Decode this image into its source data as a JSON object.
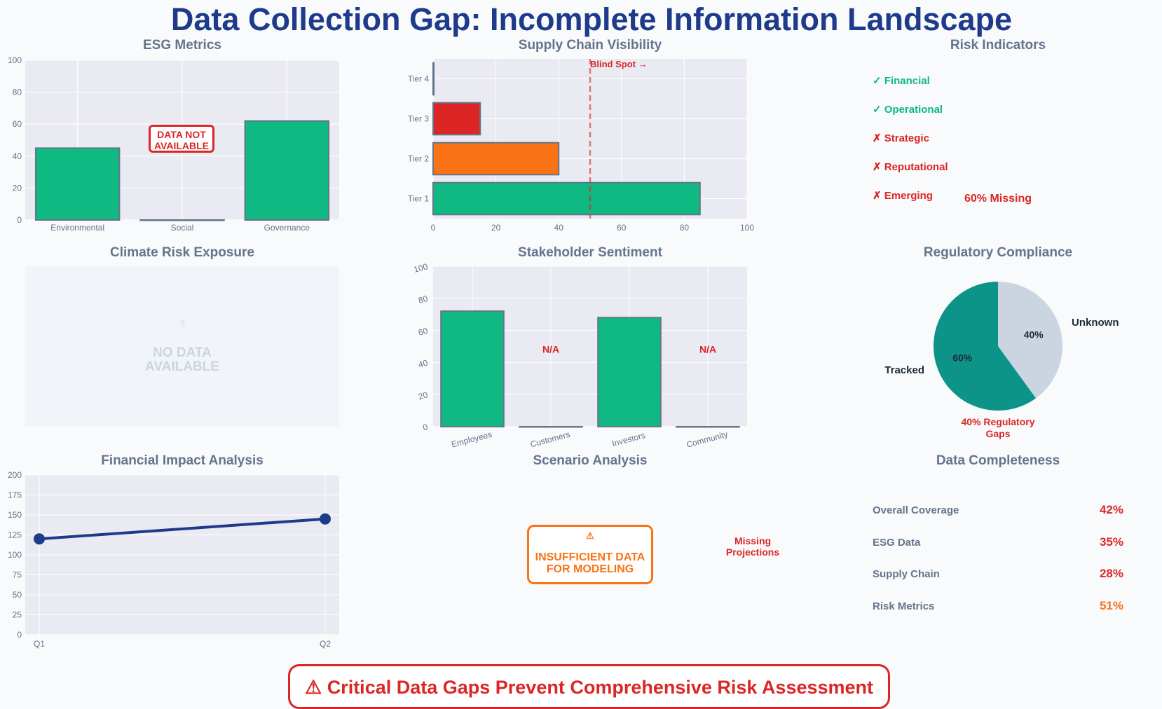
{
  "title": "Data Collection Gap: Incomplete Information Landscape",
  "colors": {
    "green": "#10b981",
    "red": "#dc2626",
    "orange": "#f97316",
    "navy": "#1e3a8a",
    "teal": "#0d9488",
    "gray_slice": "#cbd5e1",
    "grid_bg": "#eaebf2"
  },
  "panels": {
    "esg": {
      "title": "ESG Metrics",
      "badge": "DATA NOT\nAVAILABLE"
    },
    "supply": {
      "title": "Supply Chain Visibility",
      "blind_spot": "Blind Spot →"
    },
    "risk": {
      "title": "Risk Indicators",
      "missing": "60% Missing"
    },
    "climate": {
      "title": "Climate Risk Exposure",
      "icon": "question-icon",
      "message": "NO DATA\nAVAILABLE"
    },
    "stakeholder": {
      "title": "Stakeholder Sentiment",
      "na_label": "N/A"
    },
    "regulatory": {
      "title": "Regulatory Compliance",
      "gaps": "40% Regulatory\nGaps"
    },
    "financial": {
      "title": "Financial Impact Analysis"
    },
    "scenario": {
      "title": "Scenario Analysis",
      "icon": "warning-icon",
      "message": "INSUFFICIENT DATA\nFOR MODELING",
      "side_note": "Missing\nProjections"
    },
    "completeness": {
      "title": "Data Completeness"
    }
  },
  "risk_indicators": [
    {
      "label": "Financial",
      "status": "available",
      "color": "#10b981"
    },
    {
      "label": "Operational",
      "status": "available",
      "color": "#10b981"
    },
    {
      "label": "Strategic",
      "status": "missing",
      "color": "#dc2626"
    },
    {
      "label": "Reputational",
      "status": "missing",
      "color": "#dc2626"
    },
    {
      "label": "Emerging",
      "status": "missing",
      "color": "#dc2626"
    }
  ],
  "completeness": [
    {
      "label": "Overall Coverage",
      "value": "42%",
      "color": "#dc2626"
    },
    {
      "label": "ESG Data",
      "value": "35%",
      "color": "#dc2626"
    },
    {
      "label": "Supply Chain",
      "value": "28%",
      "color": "#dc2626"
    },
    {
      "label": "Risk Metrics",
      "value": "51%",
      "color": "#f97316"
    }
  ],
  "footer": "Critical Data Gaps Prevent Comprehensive Risk Assessment",
  "chart_data": [
    {
      "id": "esg",
      "type": "bar",
      "title": "ESG Metrics",
      "categories": [
        "Environmental",
        "Social",
        "Governance"
      ],
      "values": [
        45,
        0,
        62
      ],
      "ylim": [
        0,
        100
      ],
      "yticks": [
        0,
        20,
        40,
        60,
        80,
        100
      ]
    },
    {
      "id": "supply",
      "type": "bar",
      "orientation": "horizontal",
      "title": "Supply Chain Visibility",
      "categories": [
        "Tier 1",
        "Tier 2",
        "Tier 3",
        "Tier 4"
      ],
      "values": [
        85,
        40,
        15,
        0
      ],
      "colors": [
        "#10b981",
        "#f97316",
        "#dc2626",
        "#dc2626"
      ],
      "xlim": [
        0,
        100
      ],
      "xticks": [
        0,
        20,
        40,
        60,
        80,
        100
      ],
      "reference_line": 50
    },
    {
      "id": "stakeholder",
      "type": "bar",
      "title": "Stakeholder Sentiment",
      "categories": [
        "Employees",
        "Customers",
        "Investors",
        "Community"
      ],
      "values": [
        72,
        0,
        68,
        0
      ],
      "ylim": [
        0,
        100
      ],
      "yticks": [
        0,
        20,
        40,
        60,
        80,
        100
      ]
    },
    {
      "id": "regulatory",
      "type": "pie",
      "title": "Regulatory Compliance",
      "labels": [
        "Tracked",
        "Unknown"
      ],
      "values": [
        60,
        40
      ],
      "pct_labels": [
        "60%",
        "40%"
      ],
      "colors": [
        "#0d9488",
        "#cbd5e1"
      ]
    },
    {
      "id": "financial",
      "type": "line",
      "title": "Financial Impact Analysis",
      "x": [
        "Q1",
        "Q2"
      ],
      "y": [
        120,
        145
      ],
      "ylim": [
        0,
        200
      ],
      "yticks": [
        0,
        25,
        50,
        75,
        100,
        125,
        150,
        175,
        200
      ]
    }
  ]
}
